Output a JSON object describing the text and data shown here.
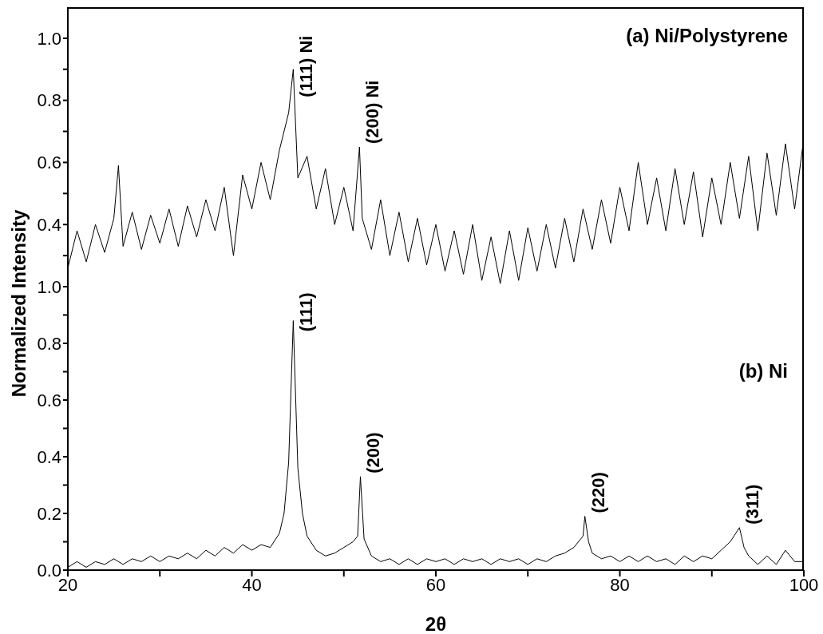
{
  "chart_data": [
    {
      "type": "line",
      "ylabel": "Normalized Intensity",
      "xlim": [
        20,
        100
      ],
      "ylim": [
        0.2,
        1.1
      ],
      "yticks": [
        {
          "value": 0.3,
          "label": null
        },
        {
          "value": 0.4,
          "label": "0.4"
        },
        {
          "value": 0.5,
          "label": null
        },
        {
          "value": 0.6,
          "label": "0.6"
        },
        {
          "value": 0.7,
          "label": null
        },
        {
          "value": 0.8,
          "label": "0.8"
        },
        {
          "value": 0.9,
          "label": null
        },
        {
          "value": 1.0,
          "label": "1.0"
        }
      ],
      "tick_labels": "y",
      "marker": "none",
      "line_style": "solid",
      "annotations": [
        "(a) Ni/Polystyrene",
        {
          "text": "(111) Ni",
          "x": 44.5,
          "y": 0.8
        },
        {
          "text": "(200) Ni",
          "x": 51.7,
          "y": 0.65
        }
      ],
      "series": [
        {
          "color": "#000000",
          "x": [
            20,
            21,
            22,
            23,
            24,
            25,
            25.5,
            26,
            27,
            28,
            29,
            30,
            31,
            32,
            33,
            34,
            35,
            36,
            37,
            38,
            39,
            40,
            41,
            42,
            43,
            44,
            44.5,
            45,
            46,
            47,
            48,
            49,
            50,
            51,
            51.7,
            52,
            53,
            54,
            55,
            56,
            57,
            58,
            59,
            60,
            61,
            62,
            63,
            64,
            65,
            66,
            67,
            68,
            69,
            70,
            71,
            72,
            73,
            74,
            75,
            76,
            77,
            78,
            79,
            80,
            81,
            82,
            83,
            84,
            85,
            86,
            87,
            88,
            89,
            90,
            91,
            92,
            93,
            94,
            95,
            96,
            97,
            98,
            99,
            100
          ],
          "values": [
            0.26,
            0.38,
            0.28,
            0.4,
            0.31,
            0.42,
            0.59,
            0.33,
            0.44,
            0.32,
            0.43,
            0.34,
            0.45,
            0.33,
            0.46,
            0.36,
            0.48,
            0.38,
            0.52,
            0.3,
            0.56,
            0.45,
            0.6,
            0.48,
            0.64,
            0.76,
            0.9,
            0.55,
            0.62,
            0.45,
            0.58,
            0.4,
            0.52,
            0.38,
            0.65,
            0.42,
            0.32,
            0.48,
            0.3,
            0.44,
            0.28,
            0.42,
            0.27,
            0.4,
            0.25,
            0.38,
            0.24,
            0.4,
            0.22,
            0.36,
            0.21,
            0.38,
            0.22,
            0.39,
            0.25,
            0.4,
            0.26,
            0.42,
            0.28,
            0.45,
            0.32,
            0.48,
            0.34,
            0.52,
            0.38,
            0.6,
            0.4,
            0.55,
            0.38,
            0.58,
            0.4,
            0.57,
            0.36,
            0.55,
            0.4,
            0.6,
            0.42,
            0.62,
            0.38,
            0.63,
            0.43,
            0.66,
            0.45,
            0.68
          ]
        }
      ]
    },
    {
      "type": "line",
      "xlabel": "2θ",
      "xlim": [
        20,
        100
      ],
      "xticks": [
        20,
        {
          "value": 30,
          "label": null
        },
        40,
        {
          "value": 50,
          "label": null
        },
        60,
        {
          "value": 70,
          "label": null
        },
        80,
        {
          "value": 90,
          "label": null
        },
        100
      ],
      "ylim": [
        0,
        1.0
      ],
      "yticks": [
        {
          "value": 0,
          "label": "0.0"
        },
        {
          "value": 0.1,
          "label": null
        },
        {
          "value": 0.2,
          "label": "0.2"
        },
        {
          "value": 0.3,
          "label": null
        },
        {
          "value": 0.4,
          "label": "0.4"
        },
        {
          "value": 0.5,
          "label": null
        },
        {
          "value": 0.6,
          "label": "0.6"
        },
        {
          "value": 0.7,
          "label": null
        },
        {
          "value": 0.8,
          "label": "0.8"
        },
        {
          "value": 0.9,
          "label": null
        },
        {
          "value": 1.0,
          "label": "1.0"
        }
      ],
      "marker": "none",
      "line_style": "solid",
      "annotations": [
        "(b) Ni",
        {
          "text": "(111)",
          "x": 44.5,
          "y": 0.83
        },
        {
          "text": "(200)",
          "x": 51.8,
          "y": 0.33
        },
        {
          "text": "(220)",
          "x": 76.2,
          "y": 0.19
        },
        {
          "text": "(311)",
          "x": 93,
          "y": 0.15
        }
      ],
      "series": [
        {
          "color": "#000000",
          "x": [
            20,
            21,
            22,
            23,
            24,
            25,
            26,
            27,
            28,
            29,
            30,
            31,
            32,
            33,
            34,
            35,
            36,
            37,
            38,
            39,
            40,
            41,
            42,
            43,
            43.5,
            44,
            44.5,
            45,
            45.5,
            46,
            47,
            48,
            49,
            50,
            51,
            51.5,
            51.8,
            52.2,
            53,
            54,
            55,
            56,
            57,
            58,
            59,
            60,
            61,
            62,
            63,
            64,
            65,
            66,
            67,
            68,
            69,
            70,
            71,
            72,
            73,
            74,
            75,
            76,
            76.2,
            76.6,
            77,
            78,
            79,
            80,
            81,
            82,
            83,
            84,
            85,
            86,
            87,
            88,
            89,
            90,
            91,
            92,
            93,
            93.5,
            94,
            95,
            96,
            97,
            98,
            99,
            100
          ],
          "values": [
            0.01,
            0.03,
            0.01,
            0.03,
            0.02,
            0.04,
            0.02,
            0.04,
            0.03,
            0.05,
            0.03,
            0.05,
            0.04,
            0.06,
            0.04,
            0.07,
            0.05,
            0.08,
            0.06,
            0.09,
            0.07,
            0.09,
            0.08,
            0.13,
            0.2,
            0.38,
            0.88,
            0.36,
            0.2,
            0.12,
            0.07,
            0.05,
            0.06,
            0.08,
            0.1,
            0.12,
            0.33,
            0.11,
            0.05,
            0.03,
            0.04,
            0.02,
            0.04,
            0.02,
            0.04,
            0.03,
            0.04,
            0.02,
            0.04,
            0.03,
            0.04,
            0.02,
            0.04,
            0.03,
            0.04,
            0.02,
            0.04,
            0.03,
            0.05,
            0.06,
            0.08,
            0.12,
            0.19,
            0.1,
            0.06,
            0.04,
            0.05,
            0.03,
            0.05,
            0.03,
            0.05,
            0.03,
            0.04,
            0.02,
            0.05,
            0.03,
            0.05,
            0.04,
            0.07,
            0.1,
            0.15,
            0.08,
            0.05,
            0.02,
            0.05,
            0.02,
            0.07,
            0.03,
            0.03
          ]
        }
      ]
    }
  ]
}
